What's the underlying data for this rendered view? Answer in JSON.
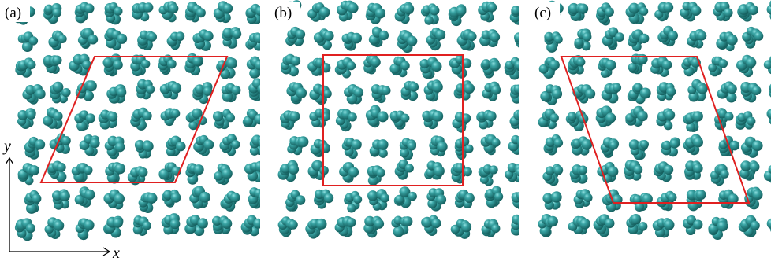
{
  "panels": [
    {
      "label": "(a)"
    },
    {
      "label": "(b)"
    },
    {
      "label": "(c)"
    }
  ],
  "axes": {
    "x_label": "x",
    "y_label": "y"
  }
}
